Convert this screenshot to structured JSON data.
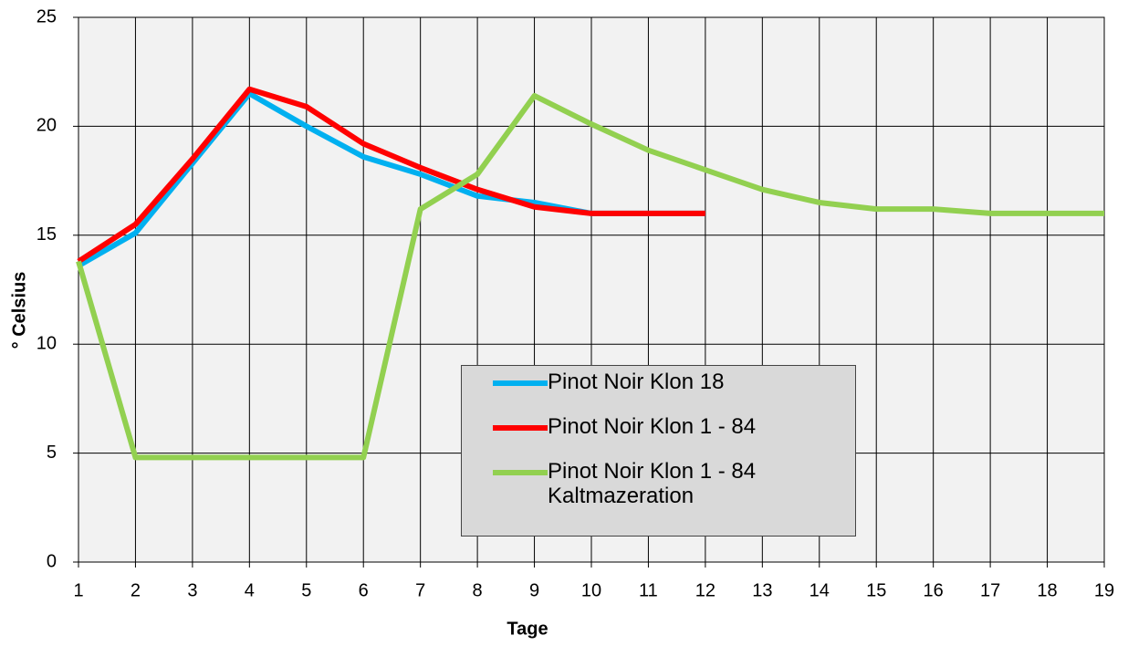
{
  "chart_data": {
    "type": "line",
    "x_label": "Tage",
    "y_label": "° Celsius",
    "x": [
      1,
      2,
      3,
      4,
      5,
      6,
      7,
      8,
      9,
      10,
      11,
      12,
      13,
      14,
      15,
      16,
      17,
      18,
      19
    ],
    "xlim": [
      1,
      19
    ],
    "xticks": [
      1,
      2,
      3,
      4,
      5,
      6,
      7,
      8,
      9,
      10,
      11,
      12,
      13,
      14,
      15,
      16,
      17,
      18,
      19
    ],
    "ylim": [
      0,
      25
    ],
    "yticks": [
      0,
      5,
      10,
      15,
      20,
      25
    ],
    "grid": true,
    "series": [
      {
        "name": "Pinot Noir Klon 18",
        "color": "#00b0f0",
        "values": [
          13.6,
          15.1,
          18.3,
          21.5,
          20.0,
          18.6,
          17.8,
          16.8,
          16.5,
          16.0,
          16.0,
          16.0,
          null,
          null,
          null,
          null,
          null,
          null,
          null
        ]
      },
      {
        "name": "Pinot Noir Klon 1 - 84",
        "color": "#ff0000",
        "values": [
          13.8,
          15.5,
          18.5,
          21.7,
          20.9,
          19.2,
          18.1,
          17.1,
          16.3,
          16.0,
          16.0,
          16.0,
          null,
          null,
          null,
          null,
          null,
          null,
          null
        ]
      },
      {
        "name": "Pinot Noir Klon 1 - 84 Kaltmazeration",
        "color": "#92d050",
        "values": [
          13.8,
          4.8,
          4.8,
          4.8,
          4.8,
          4.8,
          16.2,
          17.8,
          21.4,
          20.1,
          18.9,
          18.0,
          17.1,
          16.5,
          16.2,
          16.2,
          16.0,
          16.0,
          16.0
        ]
      }
    ]
  }
}
